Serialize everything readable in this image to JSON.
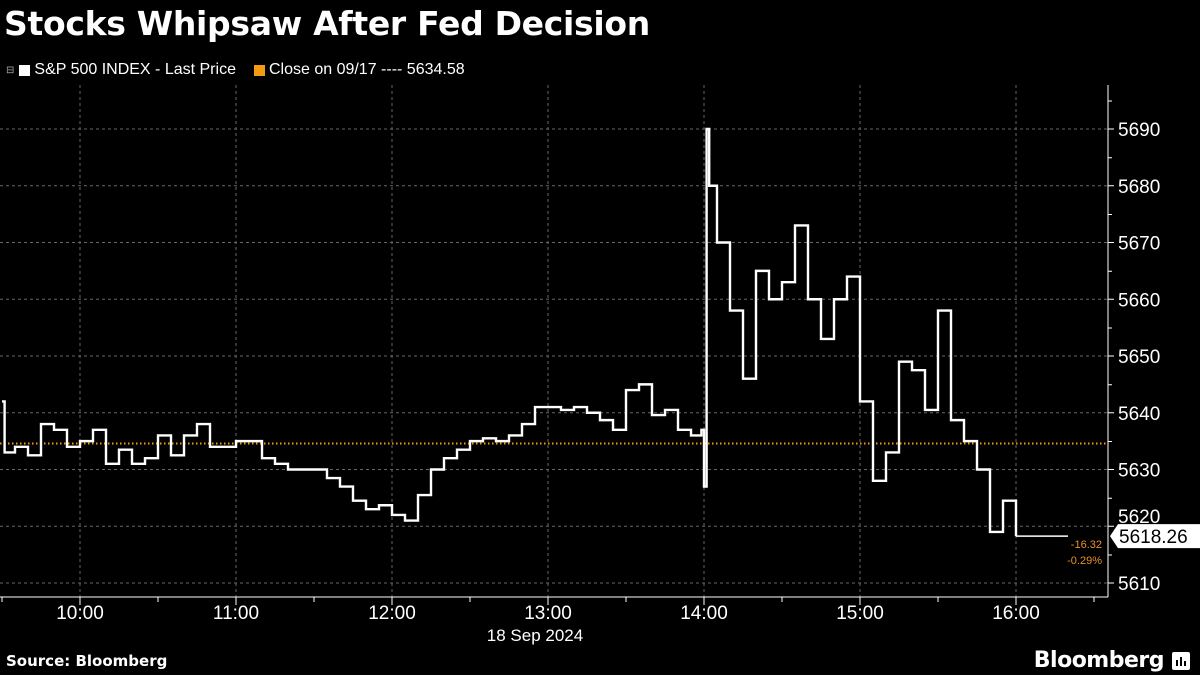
{
  "header": {
    "title": "Stocks Whipsaw After Fed Decision"
  },
  "legend": {
    "series_label": "S&P 500 INDEX - Last Price",
    "close_label": "Close on 09/17 ---- 5634.58"
  },
  "footer": {
    "source": "Source: Bloomberg",
    "brand": "Bloomberg"
  },
  "colors": {
    "background": "#000000",
    "series": "#ffffff",
    "close_line": "#f39c12",
    "change_text": "#e8912c",
    "grid": "#666666"
  },
  "chart_data": {
    "type": "line",
    "title": "Stocks Whipsaw After Fed Decision",
    "xlabel": "18 Sep 2024",
    "ylabel": "",
    "x_ticks": [
      "10:00",
      "11:00",
      "12:00",
      "13:00",
      "14:00",
      "15:00",
      "16:00"
    ],
    "y_ticks": [
      5610,
      5620,
      5630,
      5640,
      5650,
      5660,
      5670,
      5680,
      5690
    ],
    "xlim": [
      "09:30",
      "16:35"
    ],
    "ylim": [
      5607,
      5699
    ],
    "grid": true,
    "y_axis_side": "right",
    "reference_line": {
      "name": "Close on 09/17",
      "value": 5634.58
    },
    "last_price": {
      "value": "5618.26",
      "change": "-16.32",
      "change_pct": "-0.29%"
    },
    "series": [
      {
        "name": "S&P 500 INDEX - Last Price",
        "x": [
          "09:30",
          "09:31",
          "09:35",
          "09:40",
          "09:45",
          "09:50",
          "09:55",
          "10:00",
          "10:05",
          "10:10",
          "10:15",
          "10:20",
          "10:25",
          "10:30",
          "10:35",
          "10:40",
          "10:45",
          "10:50",
          "10:55",
          "11:00",
          "11:05",
          "11:10",
          "11:15",
          "11:20",
          "11:25",
          "11:30",
          "11:35",
          "11:40",
          "11:45",
          "11:50",
          "11:55",
          "12:00",
          "12:05",
          "12:10",
          "12:15",
          "12:20",
          "12:25",
          "12:30",
          "12:35",
          "12:40",
          "12:45",
          "12:50",
          "12:55",
          "13:00",
          "13:05",
          "13:10",
          "13:15",
          "13:20",
          "13:25",
          "13:30",
          "13:35",
          "13:40",
          "13:45",
          "13:50",
          "13:55",
          "13:59",
          "14:00",
          "14:01",
          "14:02",
          "14:05",
          "14:10",
          "14:15",
          "14:20",
          "14:25",
          "14:30",
          "14:35",
          "14:40",
          "14:45",
          "14:50",
          "14:55",
          "15:00",
          "15:05",
          "15:10",
          "15:15",
          "15:20",
          "15:25",
          "15:30",
          "15:35",
          "15:40",
          "15:45",
          "15:50",
          "15:55",
          "16:00"
        ],
        "values": [
          5642,
          5633,
          5634,
          5632.5,
          5638,
          5637,
          5634,
          5635,
          5637,
          5631,
          5633.5,
          5631,
          5632,
          5636,
          5632.5,
          5636,
          5638,
          5634,
          5634,
          5635,
          5635,
          5632,
          5631,
          5630,
          5630,
          5630,
          5628.5,
          5627,
          5624.5,
          5623,
          5623.7,
          5622,
          5621,
          5625.5,
          5630,
          5632,
          5633.5,
          5635,
          5635.5,
          5635,
          5636,
          5638,
          5641,
          5641,
          5640.5,
          5641,
          5640,
          5638.7,
          5637,
          5644,
          5645,
          5639.6,
          5640.5,
          5637,
          5636,
          5637,
          5627,
          5690,
          5680,
          5670,
          5658,
          5646,
          5665,
          5660,
          5663,
          5673,
          5660,
          5653,
          5660,
          5664,
          5642,
          5628,
          5633,
          5649,
          5647.5,
          5640.5,
          5658,
          5638.7,
          5635,
          5630,
          5619,
          5624.5,
          5618.26
        ]
      }
    ]
  }
}
